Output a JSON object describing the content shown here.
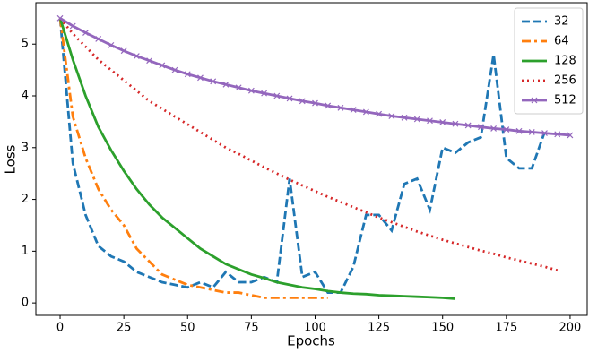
{
  "chart_data": {
    "type": "line",
    "x_label": "Epochs",
    "y_label": "Loss",
    "x": [
      0,
      5,
      10,
      15,
      20,
      25,
      30,
      35,
      40,
      45,
      50,
      55,
      60,
      65,
      70,
      75,
      80,
      85,
      90,
      95,
      100,
      105,
      110,
      115,
      120,
      125,
      130,
      135,
      140,
      145,
      150,
      155,
      160,
      165,
      170,
      175,
      180,
      185,
      190,
      195,
      200
    ],
    "xlim": [
      -9.5,
      206.7
    ],
    "ylim": [
      -0.24,
      5.8
    ],
    "xticks": [
      0,
      25,
      50,
      75,
      100,
      125,
      150,
      175,
      200
    ],
    "yticks": [
      0,
      1,
      2,
      3,
      4,
      5
    ],
    "legend": "upper right",
    "series": [
      {
        "name": "32",
        "color": "#1f77b4",
        "dash": "dashed",
        "values": [
          5.5,
          2.7,
          1.7,
          1.1,
          0.9,
          0.8,
          0.6,
          0.5,
          0.4,
          0.35,
          0.3,
          0.4,
          0.3,
          0.6,
          0.4,
          0.4,
          0.5,
          0.4,
          2.4,
          0.5,
          0.6,
          0.2,
          0.2,
          0.7,
          1.7,
          1.7,
          1.4,
          2.3,
          2.4,
          1.8,
          3.0,
          2.9,
          3.1,
          3.2,
          4.8,
          2.8,
          2.6,
          2.6,
          3.3,
          null,
          null
        ]
      },
      {
        "name": "64",
        "color": "#ff7f0e",
        "dash": "dashdot",
        "values": [
          5.5,
          3.6,
          2.8,
          2.2,
          1.8,
          1.5,
          1.05,
          0.8,
          0.55,
          0.45,
          0.35,
          0.3,
          0.25,
          0.2,
          0.2,
          0.15,
          0.1,
          0.1,
          0.1,
          0.1,
          0.1,
          0.1,
          null,
          null,
          null,
          null,
          null,
          null,
          null,
          null,
          null,
          null,
          null,
          null,
          null,
          null,
          null,
          null,
          null,
          null,
          null
        ]
      },
      {
        "name": "128",
        "color": "#2ca02c",
        "dash": "solid",
        "values": [
          5.5,
          4.7,
          4.0,
          3.4,
          2.95,
          2.55,
          2.2,
          1.9,
          1.65,
          1.45,
          1.25,
          1.05,
          0.9,
          0.75,
          0.65,
          0.55,
          0.48,
          0.4,
          0.35,
          0.3,
          0.27,
          0.23,
          0.2,
          0.18,
          0.17,
          0.15,
          0.14,
          0.13,
          0.12,
          0.11,
          0.1,
          0.08,
          null,
          null,
          null,
          null,
          null,
          null,
          null,
          null,
          null
        ]
      },
      {
        "name": "256",
        "color": "#d62728",
        "dash": "dotted",
        "values": [
          5.5,
          5.2,
          4.95,
          4.7,
          4.5,
          4.3,
          4.1,
          3.9,
          3.75,
          3.6,
          3.45,
          3.3,
          3.15,
          3.0,
          2.88,
          2.75,
          2.62,
          2.5,
          2.38,
          2.27,
          2.16,
          2.05,
          1.95,
          1.85,
          1.75,
          1.65,
          1.56,
          1.47,
          1.38,
          1.3,
          1.22,
          1.15,
          1.08,
          1.01,
          0.95,
          0.88,
          0.82,
          0.76,
          0.7,
          0.63,
          null
        ]
      },
      {
        "name": "512",
        "color": "#9467bd",
        "dash": "solid",
        "marker": "x",
        "values": [
          5.5,
          5.35,
          5.22,
          5.1,
          4.98,
          4.87,
          4.77,
          4.68,
          4.59,
          4.5,
          4.42,
          4.35,
          4.28,
          4.22,
          4.16,
          4.1,
          4.05,
          4.0,
          3.95,
          3.9,
          3.86,
          3.81,
          3.77,
          3.73,
          3.69,
          3.65,
          3.61,
          3.58,
          3.55,
          3.52,
          3.49,
          3.46,
          3.43,
          3.4,
          3.37,
          3.35,
          3.32,
          3.3,
          3.28,
          3.26,
          3.24
        ]
      }
    ]
  }
}
